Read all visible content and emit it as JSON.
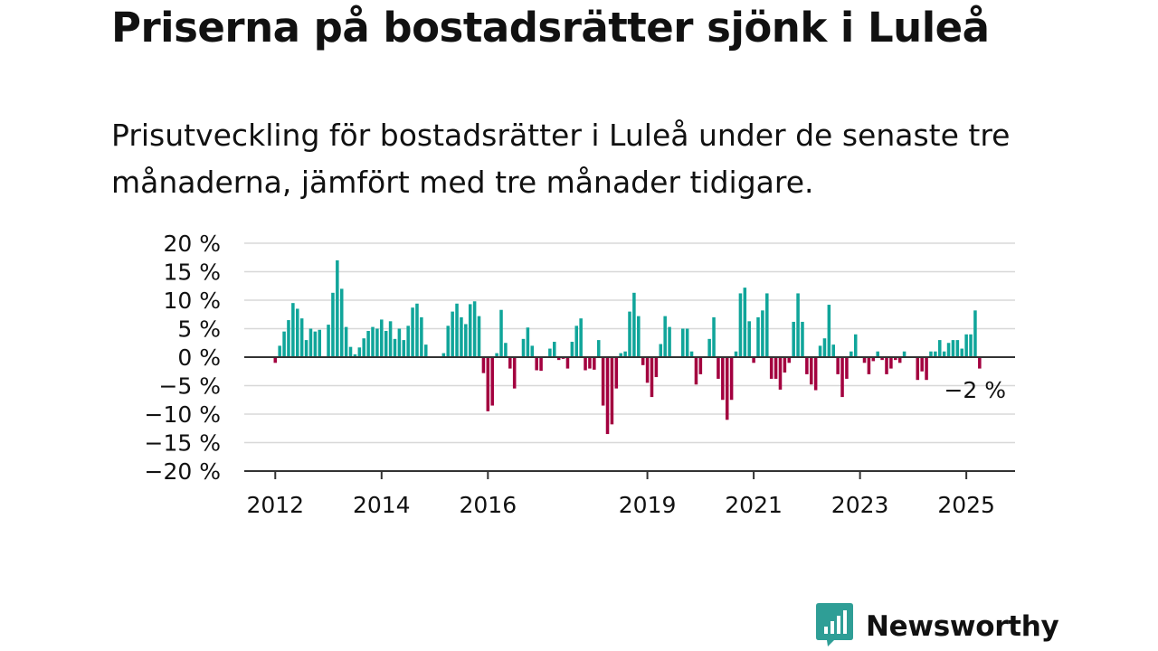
{
  "title": "Priserna på bostadsrätter sjönk i Luleå",
  "subtitle": "Prisutveckling för bostadsrätter i Luleå under de senaste tre månaderna, jämfört med tre månader tidigare.",
  "brand": {
    "name": "Newsworthy",
    "color": "#2f9e96",
    "icon": "bar-chart-speech-bubble-icon"
  },
  "colors": {
    "positive": "#10a59a",
    "negative": "#a3003f",
    "grid": "#d8d8d8",
    "axis": "#333333",
    "text": "#111111"
  },
  "chart_data": {
    "type": "bar",
    "title": "",
    "xlabel": "",
    "ylabel": "",
    "ylim": [
      -20,
      20
    ],
    "y_ticks": [
      20,
      15,
      10,
      5,
      0,
      -5,
      -10,
      -15,
      -20
    ],
    "y_tick_labels": [
      "20 %",
      "15 %",
      "10 %",
      "5 %",
      "0 %",
      "−5 %",
      "−10 %",
      "−15 %",
      "−20 %"
    ],
    "x_range": [
      "2011-06",
      "2025-12"
    ],
    "x_ticks": [
      {
        "date": "2012-01",
        "label": "2012"
      },
      {
        "date": "2014-01",
        "label": "2014"
      },
      {
        "date": "2016-01",
        "label": "2016"
      },
      {
        "date": "2019-01",
        "label": "2019"
      },
      {
        "date": "2021-01",
        "label": "2021"
      },
      {
        "date": "2023-01",
        "label": "2023"
      },
      {
        "date": "2025-01",
        "label": "2025"
      }
    ],
    "grid": true,
    "legend": "none",
    "annotation": {
      "text": "−2 %",
      "date": "2025-01"
    },
    "series": [
      {
        "start": "2012-01",
        "values": [
          -1,
          2,
          4.5,
          6.5,
          9.5,
          8.5,
          6.8,
          3,
          5,
          4.5,
          4.8,
          0,
          5.7,
          11.3,
          17,
          12,
          5.3,
          1.8,
          0.5,
          1.7,
          3.3,
          4.6,
          5.3,
          5,
          6.6,
          4.6,
          6.3,
          3.2,
          5,
          3,
          5.5,
          8.7,
          9.4,
          7,
          2.2,
          0,
          0,
          0,
          0.7,
          5.5,
          8,
          9.4,
          7,
          5.8,
          9.3,
          9.8,
          7.2,
          -2.8,
          -9.5,
          -8.5,
          0.7,
          8.3,
          2.5,
          -2,
          -5.5,
          0,
          3.2,
          5.2,
          2,
          -2.3,
          -2.4,
          0,
          1.5,
          2.7,
          -0.5,
          -0.3,
          -2,
          2.7,
          5.5,
          6.8,
          -2.3,
          -2,
          -2.2,
          3,
          -8.5,
          -13.5,
          -11.8,
          -5.5,
          0.7,
          1,
          8,
          11.3,
          7.2,
          -1.4,
          -4.5,
          -7,
          -3.5,
          2.3,
          7.2,
          5.3,
          0,
          0,
          5,
          5,
          1,
          -4.8,
          -3,
          0,
          3.2,
          7,
          -3.8,
          -7.5,
          -11,
          -7.5,
          1,
          11.2,
          12.2,
          6.3,
          -1,
          7,
          8.2,
          11.2,
          -3.8,
          -3.8,
          -5.7,
          -2.7,
          -1,
          6.2,
          11.2,
          6.2,
          -3,
          -4.8,
          -5.8,
          2,
          3.3,
          9.2,
          2.2,
          -3,
          -7,
          -3.8,
          1,
          4,
          0,
          -1,
          -3,
          -0.7,
          1,
          -0.5,
          -3,
          -2,
          -0.5,
          -1,
          1,
          0,
          0,
          -4,
          -2.5,
          -4,
          1,
          1,
          3,
          1,
          2.5,
          3,
          3,
          1.5,
          4,
          4,
          8.2,
          -2
        ]
      }
    ]
  }
}
